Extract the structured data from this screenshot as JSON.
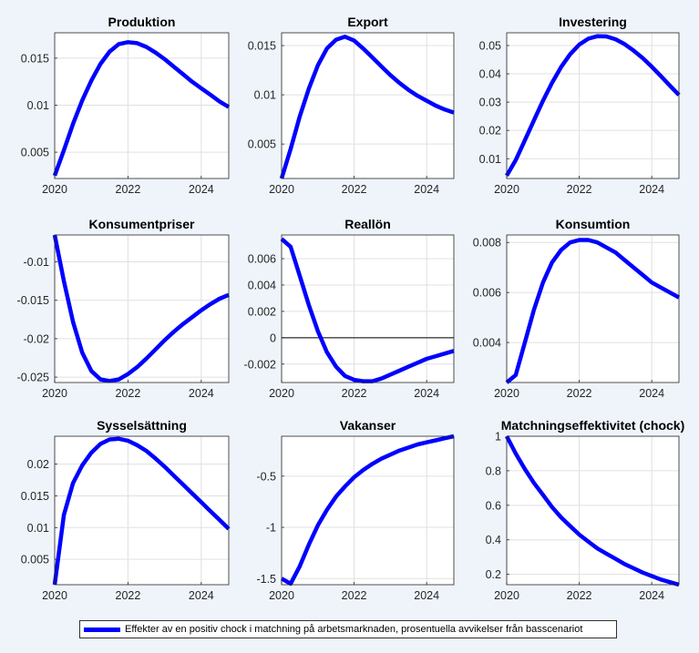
{
  "chart_data": [
    {
      "type": "line",
      "title": "Produktion",
      "x": [
        2020,
        2020.25,
        2020.5,
        2020.75,
        2021,
        2021.25,
        2021.5,
        2021.75,
        2022,
        2022.25,
        2022.5,
        2022.75,
        2023,
        2023.25,
        2023.5,
        2023.75,
        2024,
        2024.25,
        2024.5,
        2024.75
      ],
      "values": [
        0.0025,
        0.0052,
        0.008,
        0.0105,
        0.0126,
        0.0144,
        0.0157,
        0.0165,
        0.0167,
        0.0166,
        0.0162,
        0.0156,
        0.0149,
        0.0141,
        0.0133,
        0.0125,
        0.0118,
        0.0111,
        0.0104,
        0.0098
      ],
      "xlim": [
        2020,
        2024.75
      ],
      "ylim": [
        0.0022,
        0.0177
      ],
      "xticks": [
        "2020",
        "2022",
        "2024"
      ],
      "yticks": [
        "0.005",
        "0.01",
        "0.015"
      ],
      "grid": true
    },
    {
      "type": "line",
      "title": "Export",
      "x": [
        2020,
        2020.25,
        2020.5,
        2020.75,
        2021,
        2021.25,
        2021.5,
        2021.75,
        2022,
        2022.25,
        2022.5,
        2022.75,
        2023,
        2023.25,
        2023.5,
        2023.75,
        2024,
        2024.25,
        2024.5,
        2024.75
      ],
      "values": [
        0.0015,
        0.0045,
        0.0078,
        0.0106,
        0.013,
        0.0147,
        0.0156,
        0.0159,
        0.0155,
        0.0147,
        0.0138,
        0.0129,
        0.012,
        0.0112,
        0.0105,
        0.0099,
        0.0094,
        0.0089,
        0.0085,
        0.0082
      ],
      "xlim": [
        2020,
        2024.75
      ],
      "ylim": [
        0.0015,
        0.0163
      ],
      "xticks": [
        "2020",
        "2022",
        "2024"
      ],
      "yticks": [
        "0.005",
        "0.01",
        "0.015"
      ],
      "grid": true
    },
    {
      "type": "line",
      "title": "Investering",
      "x": [
        2020,
        2020.25,
        2020.5,
        2020.75,
        2021,
        2021.25,
        2021.5,
        2021.75,
        2022,
        2022.25,
        2022.5,
        2022.75,
        2023,
        2023.25,
        2023.5,
        2023.75,
        2024,
        2024.25,
        2024.5,
        2024.75
      ],
      "values": [
        0.004,
        0.0095,
        0.0165,
        0.0235,
        0.0305,
        0.0368,
        0.0424,
        0.0469,
        0.0503,
        0.0524,
        0.0533,
        0.0532,
        0.0522,
        0.0505,
        0.0482,
        0.0456,
        0.0425,
        0.0392,
        0.0358,
        0.0325
      ],
      "xlim": [
        2020,
        2024.75
      ],
      "ylim": [
        0.003,
        0.0545
      ],
      "xticks": [
        "2020",
        "2022",
        "2024"
      ],
      "yticks": [
        "0.01",
        "0.02",
        "0.03",
        "0.04",
        "0.05"
      ],
      "grid": true
    },
    {
      "type": "line",
      "title": "Konsumentpriser",
      "x": [
        2020,
        2020.25,
        2020.5,
        2020.75,
        2021,
        2021.25,
        2021.5,
        2021.75,
        2022,
        2022.25,
        2022.5,
        2022.75,
        2023,
        2023.25,
        2023.5,
        2023.75,
        2024,
        2024.25,
        2024.5,
        2024.75
      ],
      "values": [
        -0.0065,
        -0.0125,
        -0.0178,
        -0.0218,
        -0.0242,
        -0.0253,
        -0.0255,
        -0.0253,
        -0.0246,
        -0.0237,
        -0.0226,
        -0.0214,
        -0.0202,
        -0.0191,
        -0.0181,
        -0.0172,
        -0.0163,
        -0.0155,
        -0.0148,
        -0.0143
      ],
      "xlim": [
        2020,
        2024.75
      ],
      "ylim": [
        -0.0257,
        -0.0065
      ],
      "xticks": [
        "2020",
        "2022",
        "2024"
      ],
      "yticks": [
        "-0.01",
        "-0.015",
        "-0.02",
        "-0.025"
      ],
      "grid": true
    },
    {
      "type": "line",
      "title": "Reallön",
      "x": [
        2020,
        2020.25,
        2020.5,
        2020.75,
        2021,
        2021.25,
        2021.5,
        2021.75,
        2022,
        2022.25,
        2022.5,
        2022.75,
        2023,
        2023.25,
        2023.5,
        2023.75,
        2024,
        2024.25,
        2024.5,
        2024.75
      ],
      "values": [
        0.0075,
        0.0069,
        0.0047,
        0.0025,
        0.0005,
        -0.0011,
        -0.0022,
        -0.0029,
        -0.0032,
        -0.0033,
        -0.0033,
        -0.0031,
        -0.0028,
        -0.0025,
        -0.0022,
        -0.0019,
        -0.0016,
        -0.0014,
        -0.0012,
        -0.001
      ],
      "xlim": [
        2020,
        2024.75
      ],
      "ylim": [
        -0.0034,
        0.0078
      ],
      "xticks": [
        "2020",
        "2022",
        "2024"
      ],
      "yticks": [
        "0.006",
        "0.004",
        "0.002",
        "0",
        "-0.002"
      ],
      "zero_line": true,
      "grid": true
    },
    {
      "type": "line",
      "title": "Konsumtion",
      "x": [
        2020,
        2020.25,
        2020.5,
        2020.75,
        2021,
        2021.25,
        2021.5,
        2021.75,
        2022,
        2022.25,
        2022.5,
        2022.75,
        2023,
        2023.25,
        2023.5,
        2023.75,
        2024,
        2024.25,
        2024.5,
        2024.75
      ],
      "values": [
        0.0024,
        0.0027,
        0.004,
        0.0053,
        0.0064,
        0.0072,
        0.0077,
        0.008,
        0.0081,
        0.0081,
        0.008,
        0.0078,
        0.0076,
        0.0073,
        0.007,
        0.0067,
        0.0064,
        0.0062,
        0.006,
        0.0058
      ],
      "xlim": [
        2020,
        2024.75
      ],
      "ylim": [
        0.0024,
        0.0083
      ],
      "xticks": [
        "2020",
        "2022",
        "2024"
      ],
      "yticks": [
        "0.004",
        "0.006",
        "0.008"
      ],
      "grid": true
    },
    {
      "type": "line",
      "title": "Sysselsättning",
      "x": [
        2020,
        2020.25,
        2020.5,
        2020.75,
        2021,
        2021.25,
        2021.5,
        2021.75,
        2022,
        2022.25,
        2022.5,
        2022.75,
        2023,
        2023.25,
        2023.5,
        2023.75,
        2024,
        2024.25,
        2024.5,
        2024.75
      ],
      "values": [
        0.001,
        0.012,
        0.017,
        0.0198,
        0.0218,
        0.0232,
        0.0239,
        0.024,
        0.0237,
        0.023,
        0.0221,
        0.0209,
        0.0196,
        0.0182,
        0.0168,
        0.0154,
        0.014,
        0.0126,
        0.0112,
        0.0098
      ],
      "xlim": [
        2020,
        2024.75
      ],
      "ylim": [
        0.001,
        0.0244
      ],
      "xticks": [
        "2020",
        "2022",
        "2024"
      ],
      "yticks": [
        "0.005",
        "0.01",
        "0.015",
        "0.02"
      ],
      "grid": true
    },
    {
      "type": "line",
      "title": "Vakanser",
      "x": [
        2020,
        2020.25,
        2020.5,
        2020.75,
        2021,
        2021.25,
        2021.5,
        2021.75,
        2022,
        2022.25,
        2022.5,
        2022.75,
        2023,
        2023.25,
        2023.5,
        2023.75,
        2024,
        2024.25,
        2024.5,
        2024.75
      ],
      "values": [
        -1.5,
        -1.55,
        -1.38,
        -1.17,
        -0.98,
        -0.83,
        -0.7,
        -0.6,
        -0.51,
        -0.44,
        -0.38,
        -0.33,
        -0.29,
        -0.25,
        -0.22,
        -0.19,
        -0.17,
        -0.15,
        -0.13,
        -0.11
      ],
      "xlim": [
        2020,
        2024.75
      ],
      "ylim": [
        -1.56,
        -0.11
      ],
      "xticks": [
        "2020",
        "2022",
        "2024"
      ],
      "yticks": [
        "-0.5",
        "-1",
        "-1.5"
      ],
      "grid": true
    },
    {
      "type": "line",
      "title": "Matchningseffektivitet (chock)",
      "x": [
        2020,
        2020.25,
        2020.5,
        2020.75,
        2021,
        2021.25,
        2021.5,
        2021.75,
        2022,
        2022.25,
        2022.5,
        2022.75,
        2023,
        2023.25,
        2023.5,
        2023.75,
        2024,
        2024.25,
        2024.5,
        2024.75
      ],
      "values": [
        1.0,
        0.9,
        0.81,
        0.73,
        0.66,
        0.59,
        0.53,
        0.48,
        0.43,
        0.39,
        0.35,
        0.32,
        0.29,
        0.26,
        0.235,
        0.21,
        0.19,
        0.17,
        0.155,
        0.14
      ],
      "xlim": [
        2020,
        2024.75
      ],
      "ylim": [
        0.14,
        1.0
      ],
      "xticks": [
        "2020",
        "2022",
        "2024"
      ],
      "yticks": [
        "0.2",
        "0.4",
        "0.6",
        "0.8",
        "1"
      ],
      "grid": true
    }
  ],
  "legend": {
    "label": "Effekter av en positiv chock i matchning på arbetsmarknaden, prosentuella avvikelser från basscenariot",
    "color": "#0000ff"
  },
  "colors": {
    "series": "#0000ff",
    "background": "#eef4fa",
    "axes": "#ffffff",
    "grid": "#e0e0e0"
  }
}
